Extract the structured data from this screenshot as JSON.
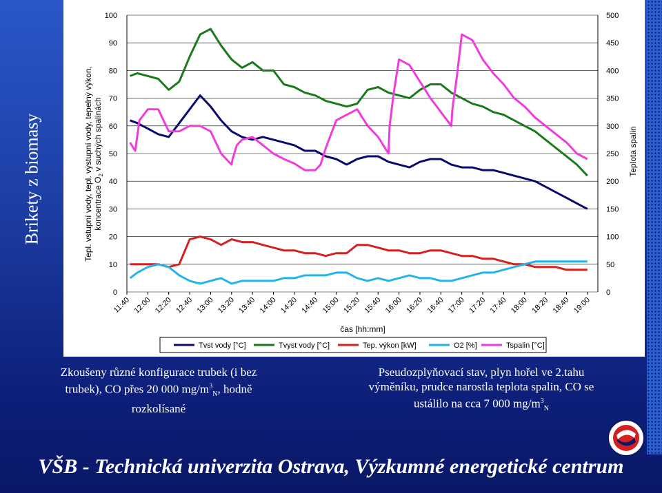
{
  "slide": {
    "side_title": "Brikety z biomasy",
    "note_left_1": "Zkoušeny různé konfigurace trubek (i bez",
    "note_left_2": "trubek), CO přes 20 000 mg/m",
    "note_left_2_sup": "3",
    "note_left_2_sub": "N",
    "note_left_2_tail": ", hodně",
    "note_left_3": "rozkolísané",
    "note_right_1": "Pseudozplyňovací stav, plyn hořel ve 2.tahu",
    "note_right_2": "výměníku, prudce narostla teplota spalin, CO se",
    "note_right_3": "ustálilo na cca 7 000 mg/m",
    "note_right_3_sup": "3",
    "note_right_3_sub": "N",
    "footer": "VŠB - Technická univerzita Ostrava, Výzkumné energetické centrum"
  },
  "colors": {
    "tvst": "#0a0a6e",
    "tvyst": "#1a7a1a",
    "vykon": "#d42020",
    "o2": "#22b4e6",
    "tspalin": "#f03cdc"
  },
  "chart_data": {
    "type": "line",
    "ylabel": "Tepl. vstupní vody, tepl. výstupní vody, tepelný výkon, koncentrace O₂ v suchých spalinách",
    "ylabel_line1": "Tepl. vstupní vody, tepl. výstupní vody, tepelný výkon,",
    "ylabel_line2_pre": "koncentrace O",
    "ylabel_line2_sub": "2",
    "ylabel_line2_post": " v suchých spalinách",
    "y2label": "Teplota spalin",
    "xlabel": "čas [hh:mm]",
    "ylim": [
      0,
      100
    ],
    "y2lim": [
      0,
      500
    ],
    "yticks": [
      "0",
      "10",
      "20",
      "30",
      "40",
      "50",
      "60",
      "70",
      "80",
      "90",
      "100"
    ],
    "y2ticks": [
      "0",
      "50",
      "100",
      "150",
      "200",
      "250",
      "300",
      "350",
      "400",
      "450",
      "500"
    ],
    "xticks": [
      "11:40",
      "12:00",
      "12:20",
      "12:40",
      "13:00",
      "13:20",
      "13:40",
      "14:00",
      "14:20",
      "14:40",
      "15:00",
      "15:20",
      "15:40",
      "16:00",
      "16:20",
      "16:40",
      "17:00",
      "17:20",
      "17:40",
      "18:00",
      "18:20",
      "18:40",
      "19:00"
    ],
    "xlim_min": [
      700,
      1150
    ],
    "legend_position": "bottom",
    "series": [
      {
        "name": "Tvst vody [°C]",
        "key": "tvst",
        "axis": "left",
        "x": [
          703,
          710,
          720,
          730,
          740,
          750,
          760,
          770,
          780,
          790,
          800,
          810,
          820,
          830,
          840,
          850,
          860,
          870,
          880,
          890,
          900,
          910,
          920,
          930,
          940,
          950,
          960,
          970,
          980,
          990,
          1000,
          1010,
          1020,
          1030,
          1040,
          1050,
          1060,
          1070,
          1080,
          1090,
          1100,
          1110,
          1120,
          1130,
          1140
        ],
        "y": [
          62,
          61,
          59,
          57,
          56,
          61,
          66,
          71,
          67,
          62,
          58,
          56,
          55,
          56,
          55,
          54,
          53,
          51,
          51,
          49,
          48,
          46,
          48,
          49,
          49,
          47,
          46,
          45,
          47,
          48,
          48,
          46,
          45,
          45,
          44,
          44,
          43,
          42,
          41,
          40,
          38,
          36,
          34,
          32,
          30
        ]
      },
      {
        "name": "Tvyst vody [°C]",
        "key": "tvyst",
        "axis": "left",
        "x": [
          703,
          710,
          720,
          730,
          740,
          750,
          760,
          770,
          780,
          790,
          800,
          810,
          820,
          830,
          840,
          850,
          860,
          870,
          880,
          890,
          900,
          910,
          920,
          930,
          940,
          950,
          960,
          970,
          980,
          990,
          1000,
          1010,
          1020,
          1030,
          1040,
          1050,
          1060,
          1070,
          1080,
          1090,
          1100,
          1110,
          1120,
          1130,
          1140
        ],
        "y": [
          78,
          79,
          78,
          77,
          73,
          76,
          85,
          93,
          95,
          89,
          84,
          81,
          83,
          80,
          80,
          75,
          74,
          72,
          71,
          69,
          68,
          67,
          68,
          73,
          74,
          72,
          71,
          70,
          73,
          75,
          75,
          72,
          70,
          68,
          67,
          65,
          64,
          62,
          60,
          58,
          55,
          52,
          49,
          46,
          42
        ]
      },
      {
        "name": "Tep. výkon [kW]",
        "key": "vykon",
        "axis": "left",
        "x": [
          703,
          710,
          720,
          730,
          740,
          750,
          760,
          770,
          780,
          790,
          800,
          810,
          820,
          830,
          840,
          850,
          860,
          870,
          880,
          890,
          900,
          910,
          920,
          930,
          940,
          950,
          960,
          970,
          980,
          990,
          1000,
          1010,
          1020,
          1030,
          1040,
          1050,
          1060,
          1070,
          1080,
          1090,
          1100,
          1110,
          1120,
          1130,
          1140
        ],
        "y": [
          10,
          10,
          10,
          10,
          9,
          10,
          19,
          20,
          19,
          17,
          19,
          18,
          18,
          17,
          16,
          15,
          15,
          14,
          14,
          13,
          14,
          14,
          17,
          17,
          16,
          15,
          15,
          14,
          14,
          15,
          15,
          14,
          13,
          13,
          12,
          12,
          11,
          10,
          10,
          9,
          9,
          9,
          8,
          8,
          8
        ]
      },
      {
        "name": "O2 [%]",
        "key": "o2",
        "axis": "left",
        "x": [
          703,
          710,
          720,
          730,
          740,
          750,
          760,
          770,
          780,
          790,
          800,
          810,
          820,
          830,
          840,
          850,
          860,
          870,
          880,
          890,
          900,
          910,
          920,
          930,
          940,
          950,
          960,
          970,
          980,
          990,
          1000,
          1010,
          1020,
          1030,
          1040,
          1050,
          1060,
          1070,
          1080,
          1090,
          1100,
          1110,
          1120,
          1130,
          1140
        ],
        "y": [
          5,
          7,
          9,
          10,
          9,
          6,
          4,
          3,
          4,
          5,
          3,
          4,
          4,
          4,
          4,
          5,
          5,
          6,
          6,
          6,
          7,
          7,
          5,
          4,
          5,
          4,
          5,
          6,
          5,
          5,
          4,
          4,
          5,
          6,
          7,
          7,
          8,
          9,
          10,
          11,
          11,
          11,
          11,
          11,
          11
        ]
      },
      {
        "name": "Tspalin [°C]",
        "key": "tspalin",
        "axis": "right",
        "x": [
          703,
          708,
          712,
          720,
          730,
          740,
          750,
          760,
          770,
          780,
          790,
          800,
          801,
          805,
          810,
          820,
          830,
          840,
          850,
          860,
          870,
          880,
          885,
          890,
          900,
          910,
          920,
          930,
          940,
          950,
          951,
          955,
          960,
          970,
          980,
          990,
          1000,
          1010,
          1011,
          1015,
          1020,
          1030,
          1040,
          1050,
          1060,
          1070,
          1080,
          1090,
          1100,
          1110,
          1120,
          1130,
          1140
        ],
        "y": [
          270,
          255,
          310,
          330,
          330,
          290,
          290,
          300,
          300,
          290,
          250,
          230,
          240,
          265,
          275,
          280,
          265,
          250,
          240,
          232,
          220,
          220,
          230,
          260,
          310,
          320,
          330,
          300,
          280,
          250,
          300,
          360,
          420,
          410,
          380,
          350,
          325,
          300,
          330,
          385,
          465,
          455,
          420,
          395,
          375,
          350,
          335,
          315,
          300,
          285,
          270,
          250,
          240
        ]
      }
    ]
  }
}
